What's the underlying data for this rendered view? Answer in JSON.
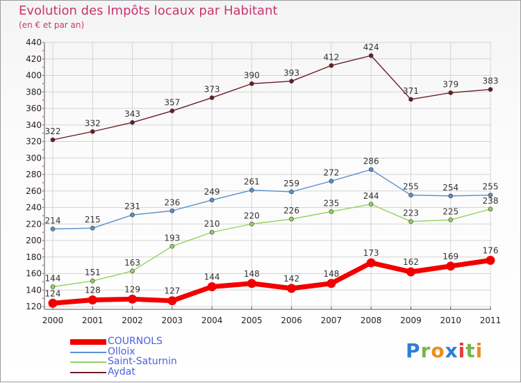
{
  "header": {
    "title": "Evolution des Impôts locaux par Habitant",
    "subtitle": "(en € et par an)"
  },
  "logo": {
    "text": "Proxiti",
    "letters": [
      "P",
      "r",
      "o",
      "x",
      "i",
      "t",
      "i"
    ],
    "colors": [
      "#2f7fd6",
      "#7ab648",
      "#f08a1c",
      "#2f7fd6",
      "#e83b3b",
      "#7ab648",
      "#f08a1c"
    ]
  },
  "chart_data": {
    "type": "line",
    "title": "Evolution des Impôts locaux par Habitant",
    "subtitle": "(en € et par an)",
    "xlabel": "",
    "ylabel": "",
    "categories": [
      "2000",
      "2001",
      "2002",
      "2003",
      "2004",
      "2005",
      "2006",
      "2007",
      "2008",
      "2009",
      "2010",
      "2011"
    ],
    "ylim": [
      120,
      440
    ],
    "yticks": [
      120,
      140,
      160,
      180,
      200,
      220,
      240,
      260,
      280,
      300,
      320,
      340,
      360,
      380,
      400,
      420,
      440
    ],
    "grid": true,
    "legend_position": "bottom-left",
    "series": [
      {
        "name": "COURNOLS",
        "color": "#f20000",
        "values": [
          124,
          128,
          129,
          127,
          144,
          148,
          142,
          148,
          173,
          162,
          169,
          176
        ]
      },
      {
        "name": "Olloix",
        "color": "#5b8fc9",
        "values": [
          214,
          215,
          231,
          236,
          249,
          261,
          259,
          272,
          286,
          255,
          254,
          255
        ]
      },
      {
        "name": "Saint-Saturnin",
        "color": "#8fd45a",
        "values": [
          144,
          151,
          163,
          193,
          210,
          220,
          226,
          235,
          244,
          223,
          225,
          238
        ]
      },
      {
        "name": "Aydat",
        "color": "#6b1d24",
        "values": [
          322,
          332,
          343,
          357,
          373,
          390,
          393,
          412,
          424,
          371,
          379,
          383
        ]
      }
    ]
  }
}
